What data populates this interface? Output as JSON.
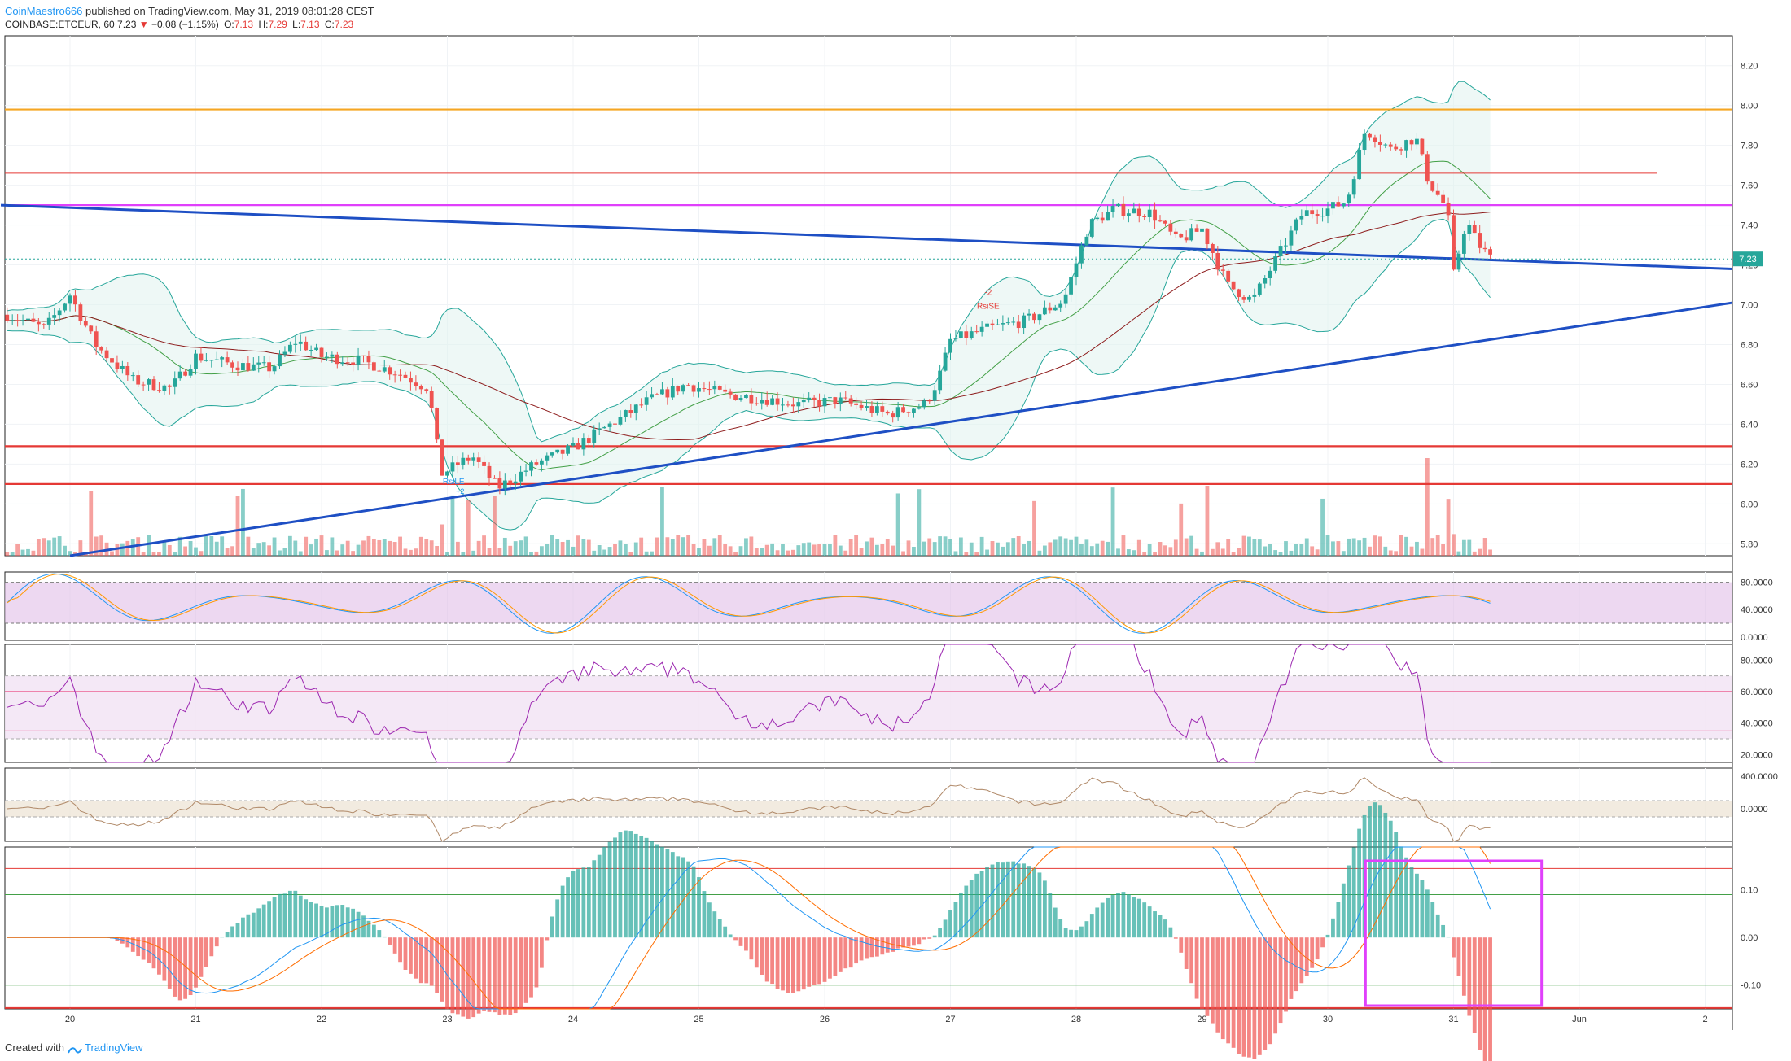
{
  "header": {
    "author": "CoinMaestro666",
    "published_text": " published on TradingView.com, May 31, 2019 08:01:28 CEST",
    "symbol_line": "COINBASE:ETCEUR, 60",
    "last_price": "7.23",
    "change": "−0.08 (−1.15%)",
    "open_label": "O:",
    "open": "7.13",
    "high_label": "H:",
    "high": "7.29",
    "low_label": "L:",
    "low": "7.13",
    "close_label": "C:",
    "close": "7.23"
  },
  "footer": {
    "created_with": "Created with",
    "brand": "TradingView"
  },
  "chart_data": {
    "type": "candlestick",
    "symbol": "COINBASE:ETCEUR",
    "interval": "60",
    "x_ticks": [
      "20",
      "21",
      "22",
      "23",
      "24",
      "25",
      "26",
      "27",
      "28",
      "29",
      "30",
      "31",
      "Jun",
      "2"
    ],
    "price_axis": {
      "ticks": [
        "5.80",
        "6.00",
        "6.20",
        "6.40",
        "6.60",
        "6.80",
        "7.00",
        "7.20",
        "7.40",
        "7.60",
        "7.80",
        "8.00",
        "8.20"
      ],
      "ylim": [
        5.74,
        8.35
      ],
      "last_price_tag": "7.23"
    },
    "price_path": [
      {
        "day": 19.5,
        "close": 6.95
      },
      {
        "day": 19.8,
        "close": 6.88
      },
      {
        "day": 20.0,
        "close": 7.05
      },
      {
        "day": 20.2,
        "close": 6.8
      },
      {
        "day": 20.5,
        "close": 6.62
      },
      {
        "day": 20.8,
        "close": 6.58
      },
      {
        "day": 21.0,
        "close": 6.74
      },
      {
        "day": 21.3,
        "close": 6.7
      },
      {
        "day": 21.6,
        "close": 6.68
      },
      {
        "day": 21.8,
        "close": 6.82
      },
      {
        "day": 22.0,
        "close": 6.74
      },
      {
        "day": 22.3,
        "close": 6.72
      },
      {
        "day": 22.6,
        "close": 6.66
      },
      {
        "day": 22.85,
        "close": 6.58
      },
      {
        "day": 22.95,
        "close": 6.15
      },
      {
        "day": 23.2,
        "close": 6.24
      },
      {
        "day": 23.4,
        "close": 6.08
      },
      {
        "day": 23.7,
        "close": 6.2
      },
      {
        "day": 24.0,
        "close": 6.28
      },
      {
        "day": 24.3,
        "close": 6.4
      },
      {
        "day": 24.6,
        "close": 6.52
      },
      {
        "day": 24.9,
        "close": 6.6
      },
      {
        "day": 25.2,
        "close": 6.55
      },
      {
        "day": 25.5,
        "close": 6.53
      },
      {
        "day": 25.8,
        "close": 6.5
      },
      {
        "day": 26.1,
        "close": 6.52
      },
      {
        "day": 26.5,
        "close": 6.45
      },
      {
        "day": 26.8,
        "close": 6.5
      },
      {
        "day": 26.9,
        "close": 6.62
      },
      {
        "day": 27.0,
        "close": 6.82
      },
      {
        "day": 27.3,
        "close": 6.88
      },
      {
        "day": 27.6,
        "close": 6.92
      },
      {
        "day": 27.9,
        "close": 7.02
      },
      {
        "day": 28.1,
        "close": 7.4
      },
      {
        "day": 28.3,
        "close": 7.48
      },
      {
        "day": 28.6,
        "close": 7.46
      },
      {
        "day": 28.8,
        "close": 7.32
      },
      {
        "day": 29.0,
        "close": 7.38
      },
      {
        "day": 29.2,
        "close": 7.1
      },
      {
        "day": 29.4,
        "close": 7.02
      },
      {
        "day": 29.6,
        "close": 7.24
      },
      {
        "day": 29.8,
        "close": 7.46
      },
      {
        "day": 30.0,
        "close": 7.48
      },
      {
        "day": 30.15,
        "close": 7.52
      },
      {
        "day": 30.3,
        "close": 7.88
      },
      {
        "day": 30.5,
        "close": 7.78
      },
      {
        "day": 30.7,
        "close": 7.84
      },
      {
        "day": 30.8,
        "close": 7.62
      },
      {
        "day": 30.95,
        "close": 7.48
      },
      {
        "day": 31.0,
        "close": 7.15
      },
      {
        "day": 31.1,
        "close": 7.42
      },
      {
        "day": 31.2,
        "close": 7.3
      },
      {
        "day": 31.3,
        "close": 7.23
      }
    ],
    "horizontal_lines": [
      {
        "price": 7.98,
        "color": "#f5a623"
      },
      {
        "price": 7.66,
        "color": "#e53935"
      },
      {
        "price": 7.5,
        "color": "#e040fb"
      },
      {
        "price": 6.29,
        "color": "#e53935"
      },
      {
        "price": 6.1,
        "color": "#e53935"
      }
    ],
    "trend_lines": [
      {
        "from": {
          "day": 19.45,
          "price": 7.5
        },
        "to": {
          "day": 33.5,
          "price": 7.18
        },
        "color": "#1e4fc4"
      },
      {
        "from": {
          "day": 20.0,
          "price": 5.74
        },
        "to": {
          "day": 33.5,
          "price": 7.01
        },
        "color": "#1e4fc4"
      }
    ],
    "annotations": [
      {
        "text": "RsiLE",
        "value": "+2",
        "day": 23.05,
        "price": 6.1,
        "color": "#2196f3"
      },
      {
        "text": "-2",
        "day": 27.3,
        "price": 7.05,
        "color": "#e53935"
      },
      {
        "text": "RsiSE",
        "day": 27.3,
        "price": 6.98,
        "color": "#e53935"
      }
    ],
    "indicators": [
      {
        "name": "stochastic",
        "ticks": [
          "80.0000",
          "40.0000",
          "0.0000"
        ]
      },
      {
        "name": "rsi",
        "ticks": [
          "80.0000",
          "60.0000",
          "40.0000",
          "20.0000"
        ]
      },
      {
        "name": "cci",
        "ticks": [
          "400.0000",
          "0.0000"
        ]
      },
      {
        "name": "macd",
        "ticks": [
          "0.10",
          "0.00",
          "-0.10"
        ]
      }
    ]
  },
  "colors": {
    "up": "#26a69a",
    "down": "#ef5350",
    "bollinger": "#26a69a",
    "macd_line": "#2196f3",
    "signal_line": "#ff6d00",
    "highlight_box": "#e040fb"
  }
}
